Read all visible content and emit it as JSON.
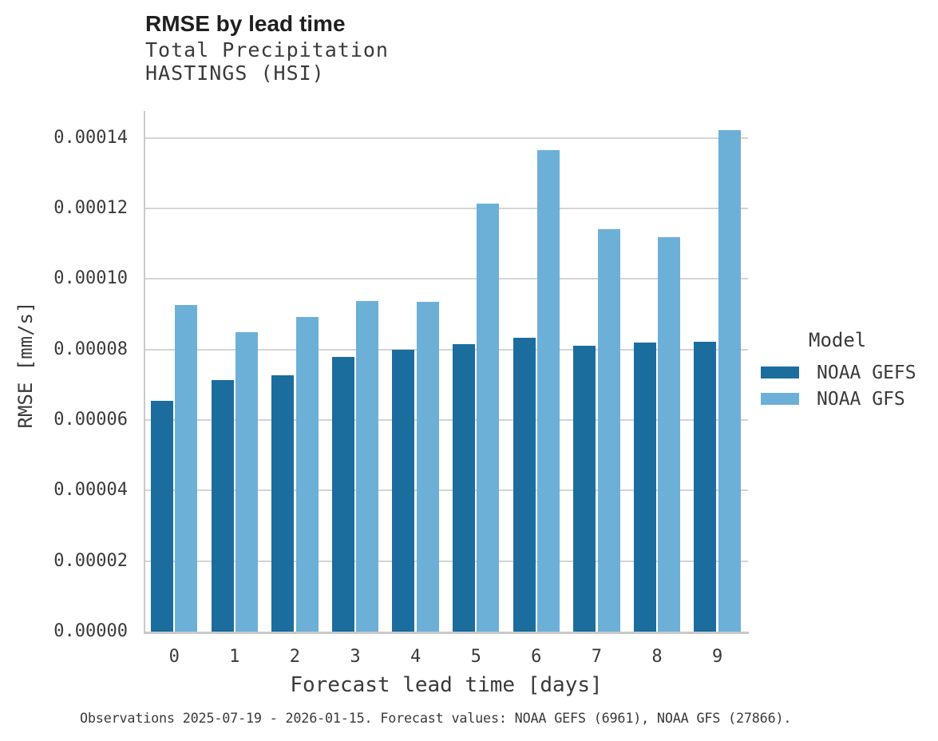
{
  "chart_data": {
    "type": "bar",
    "title": "RMSE by lead time",
    "subtitle_variable": "Total Precipitation",
    "subtitle_station": "HASTINGS (HSI)",
    "xlabel": "Forecast lead time [days]",
    "ylabel": "RMSE [mm/s]",
    "categories": [
      "0",
      "1",
      "2",
      "3",
      "4",
      "5",
      "6",
      "7",
      "8",
      "9"
    ],
    "series": [
      {
        "name": "NOAA GEFS",
        "color": "#1b6d9e",
        "values": [
          6.54e-05,
          7.13e-05,
          7.26e-05,
          7.78e-05,
          7.98e-05,
          8.16e-05,
          8.33e-05,
          8.11e-05,
          8.19e-05,
          8.22e-05
        ]
      },
      {
        "name": "NOAA GFS",
        "color": "#6cb0d8",
        "values": [
          9.27e-05,
          8.5e-05,
          8.91e-05,
          9.38e-05,
          9.36e-05,
          0.0001213,
          0.0001366,
          0.000114,
          0.0001118,
          0.0001422
        ]
      }
    ],
    "ylim": [
      0,
      0.0001476
    ],
    "yticks": [
      0,
      2e-05,
      4e-05,
      6e-05,
      8e-05,
      0.0001,
      0.00012,
      0.00014
    ],
    "ytick_decimals": 5,
    "grid": "horizontal",
    "legend_title": "Model",
    "legend_position": "right",
    "caption": "Observations 2025-07-19 - 2026-01-15. Forecast values: NOAA GEFS (6961), NOAA GFS (27866)."
  }
}
